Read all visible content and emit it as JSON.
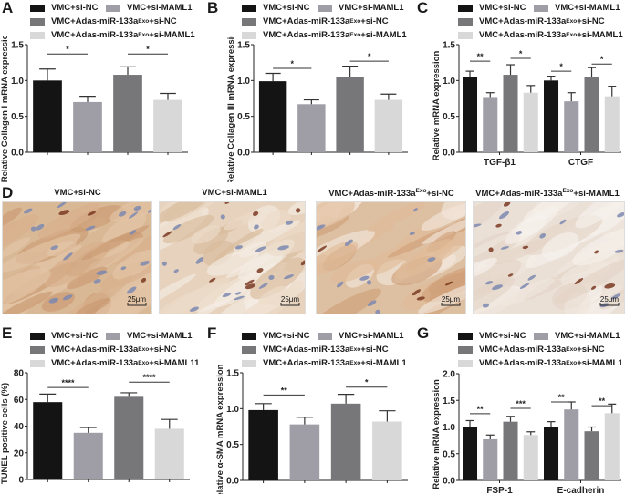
{
  "colors": {
    "vmc_si_nc": "#141414",
    "vmc_si_maml1": "#9f9ea6",
    "adas_si_nc": "#777679",
    "adas_si_maml1": "#d8d8d8"
  },
  "legend": {
    "item1": "VMC+si-NC",
    "item2": "VMC+si-MAML1",
    "item3_pre": "VMC+Adas-miR-133a",
    "item3_sup": "Exo",
    "item3_post": "+si-NC",
    "item4_pre": "VMC+Adas-miR-133a",
    "item4_sup": "Exo",
    "item4_post": "+si-MAML1",
    "item4_post_E": "+si-MAML11"
  },
  "panels": {
    "A": {
      "letter": "A"
    },
    "B": {
      "letter": "B"
    },
    "C": {
      "letter": "C"
    },
    "D": {
      "letter": "D",
      "labels": [
        {
          "pre": "VMC+si-NC",
          "sup": "",
          "post": ""
        },
        {
          "pre": "VMC+si-MAML1",
          "sup": "",
          "post": ""
        },
        {
          "pre": "VMC+Adas-miR-133a",
          "sup": "Exo",
          "post": "+si-NC"
        },
        {
          "pre": "VMC+Adas-miR-133a",
          "sup": "Exo",
          "post": "+si-MAML1"
        }
      ],
      "scale_bar": "25μm"
    },
    "E": {
      "letter": "E"
    },
    "F": {
      "letter": "F"
    },
    "G": {
      "letter": "G"
    }
  },
  "chart_data": [
    {
      "panel": "A",
      "type": "bar",
      "title": "",
      "xlabel": "",
      "ylabel": "Relative Collagen I mRNA expression",
      "ylim": [
        0,
        1.5
      ],
      "yticks": [
        "0.0",
        "0.5",
        "1.0",
        "1.5"
      ],
      "categories": [
        "VMC+si-NC",
        "VMC+si-MAML1",
        "VMC+Adas-miR-133aExo+si-NC",
        "VMC+Adas-miR-133aExo+si-MAML1"
      ],
      "values": [
        1.0,
        0.7,
        1.08,
        0.73
      ],
      "errors": [
        0.16,
        0.08,
        0.11,
        0.09
      ],
      "significance": [
        {
          "pair": [
            0,
            1
          ],
          "label": "*",
          "y": 1.37
        },
        {
          "pair": [
            2,
            3
          ],
          "label": "*",
          "y": 1.37
        }
      ]
    },
    {
      "panel": "B",
      "type": "bar",
      "title": "",
      "xlabel": "",
      "ylabel": "Relative Collagen III mRNA expression",
      "ylim": [
        0,
        1.5
      ],
      "yticks": [
        "0.0",
        "0.5",
        "1.0",
        "1.5"
      ],
      "categories": [
        "VMC+si-NC",
        "VMC+si-MAML1",
        "VMC+Adas-miR-133aExo+si-NC",
        "VMC+Adas-miR-133aExo+si-MAML1"
      ],
      "values": [
        0.99,
        0.67,
        1.05,
        0.73
      ],
      "errors": [
        0.11,
        0.06,
        0.15,
        0.08
      ],
      "significance": [
        {
          "pair": [
            0,
            1
          ],
          "label": "*",
          "y": 1.17
        },
        {
          "pair": [
            2,
            3
          ],
          "label": "*",
          "y": 1.27
        }
      ]
    },
    {
      "panel": "C",
      "type": "bar",
      "title": "",
      "xlabel": "",
      "ylabel": "Relative mRNA expression",
      "ylim": [
        0,
        1.5
      ],
      "yticks": [
        "0.0",
        "0.5",
        "1.0",
        "1.5"
      ],
      "categories": [
        "TGF-β1",
        "CTGF"
      ],
      "series": [
        {
          "name": "VMC+si-NC",
          "values": [
            1.05,
            1.0
          ],
          "errors": [
            0.08,
            0.06
          ]
        },
        {
          "name": "VMC+si-MAML1",
          "values": [
            0.77,
            0.71
          ],
          "errors": [
            0.06,
            0.12
          ]
        },
        {
          "name": "VMC+Adas-miR-133aExo+si-NC",
          "values": [
            1.08,
            1.05
          ],
          "errors": [
            0.14,
            0.13
          ]
        },
        {
          "name": "VMC+Adas-miR-133aExo+si-MAML1",
          "values": [
            0.83,
            0.78
          ],
          "errors": [
            0.1,
            0.14
          ]
        }
      ],
      "significance": [
        {
          "group": 0,
          "pair": [
            0,
            1
          ],
          "label": "**",
          "y": 1.27
        },
        {
          "group": 0,
          "pair": [
            2,
            3
          ],
          "label": "*",
          "y": 1.31
        },
        {
          "group": 1,
          "pair": [
            0,
            1
          ],
          "label": "*",
          "y": 1.13
        },
        {
          "group": 1,
          "pair": [
            2,
            3
          ],
          "label": "*",
          "y": 1.23
        }
      ]
    },
    {
      "panel": "E",
      "type": "bar",
      "title": "",
      "xlabel": "",
      "ylabel": "TUNEL positive cells (%)",
      "ylim": [
        0,
        80
      ],
      "yticks": [
        "0",
        "20",
        "40",
        "60",
        "80"
      ],
      "categories": [
        "VMC+si-NC",
        "VMC+si-MAML1",
        "VMC+Adas-miR-133aExo+si-NC",
        "VMC+Adas-miR-133aExo+si-MAML11"
      ],
      "values": [
        58,
        35,
        62,
        38
      ],
      "errors": [
        6,
        4,
        3,
        7
      ],
      "significance": [
        {
          "pair": [
            0,
            1
          ],
          "label": "****",
          "y": 69
        },
        {
          "pair": [
            2,
            3
          ],
          "label": "****",
          "y": 73
        }
      ]
    },
    {
      "panel": "F",
      "type": "bar",
      "title": "",
      "xlabel": "",
      "ylabel": "Relative α-SMA mRNA expression",
      "ylim": [
        0,
        1.5
      ],
      "yticks": [
        "0.0",
        "0.5",
        "1.0",
        "1.5"
      ],
      "categories": [
        "VMC+si-NC",
        "VMC+si-MAML1",
        "VMC+Adas-miR-133aExo+si-NC",
        "VMC+Adas-miR-133aExo+si-MAML1"
      ],
      "values": [
        0.98,
        0.78,
        1.07,
        0.82
      ],
      "errors": [
        0.09,
        0.1,
        0.13,
        0.15
      ],
      "significance": [
        {
          "pair": [
            0,
            1
          ],
          "label": "**",
          "y": 1.19
        },
        {
          "pair": [
            2,
            3
          ],
          "label": "*",
          "y": 1.3
        }
      ]
    },
    {
      "panel": "G",
      "type": "bar",
      "title": "",
      "xlabel": "",
      "ylabel": "Relative mRNA expression",
      "ylim": [
        0,
        2.0
      ],
      "yticks": [
        "0.0",
        "0.5",
        "1.0",
        "1.5",
        "2.0"
      ],
      "categories": [
        "FSP-1",
        "E-cadherin"
      ],
      "series": [
        {
          "name": "VMC+si-NC",
          "values": [
            1.0,
            1.0
          ],
          "errors": [
            0.12,
            0.1
          ]
        },
        {
          "name": "VMC+si-MAML1",
          "values": [
            0.77,
            1.33
          ],
          "errors": [
            0.08,
            0.14
          ]
        },
        {
          "name": "VMC+Adas-miR-133aExo+si-NC",
          "values": [
            1.1,
            0.92
          ],
          "errors": [
            0.1,
            0.08
          ]
        },
        {
          "name": "VMC+Adas-miR-133aExo+si-MAML1",
          "values": [
            0.85,
            1.26
          ],
          "errors": [
            0.06,
            0.17
          ]
        }
      ],
      "significance": [
        {
          "group": 0,
          "pair": [
            0,
            1
          ],
          "label": "**",
          "y": 1.25
        },
        {
          "group": 0,
          "pair": [
            2,
            3
          ],
          "label": "***",
          "y": 1.35
        },
        {
          "group": 1,
          "pair": [
            0,
            1
          ],
          "label": "**",
          "y": 1.47
        },
        {
          "group": 1,
          "pair": [
            2,
            3
          ],
          "label": "**",
          "y": 1.4
        }
      ]
    }
  ]
}
